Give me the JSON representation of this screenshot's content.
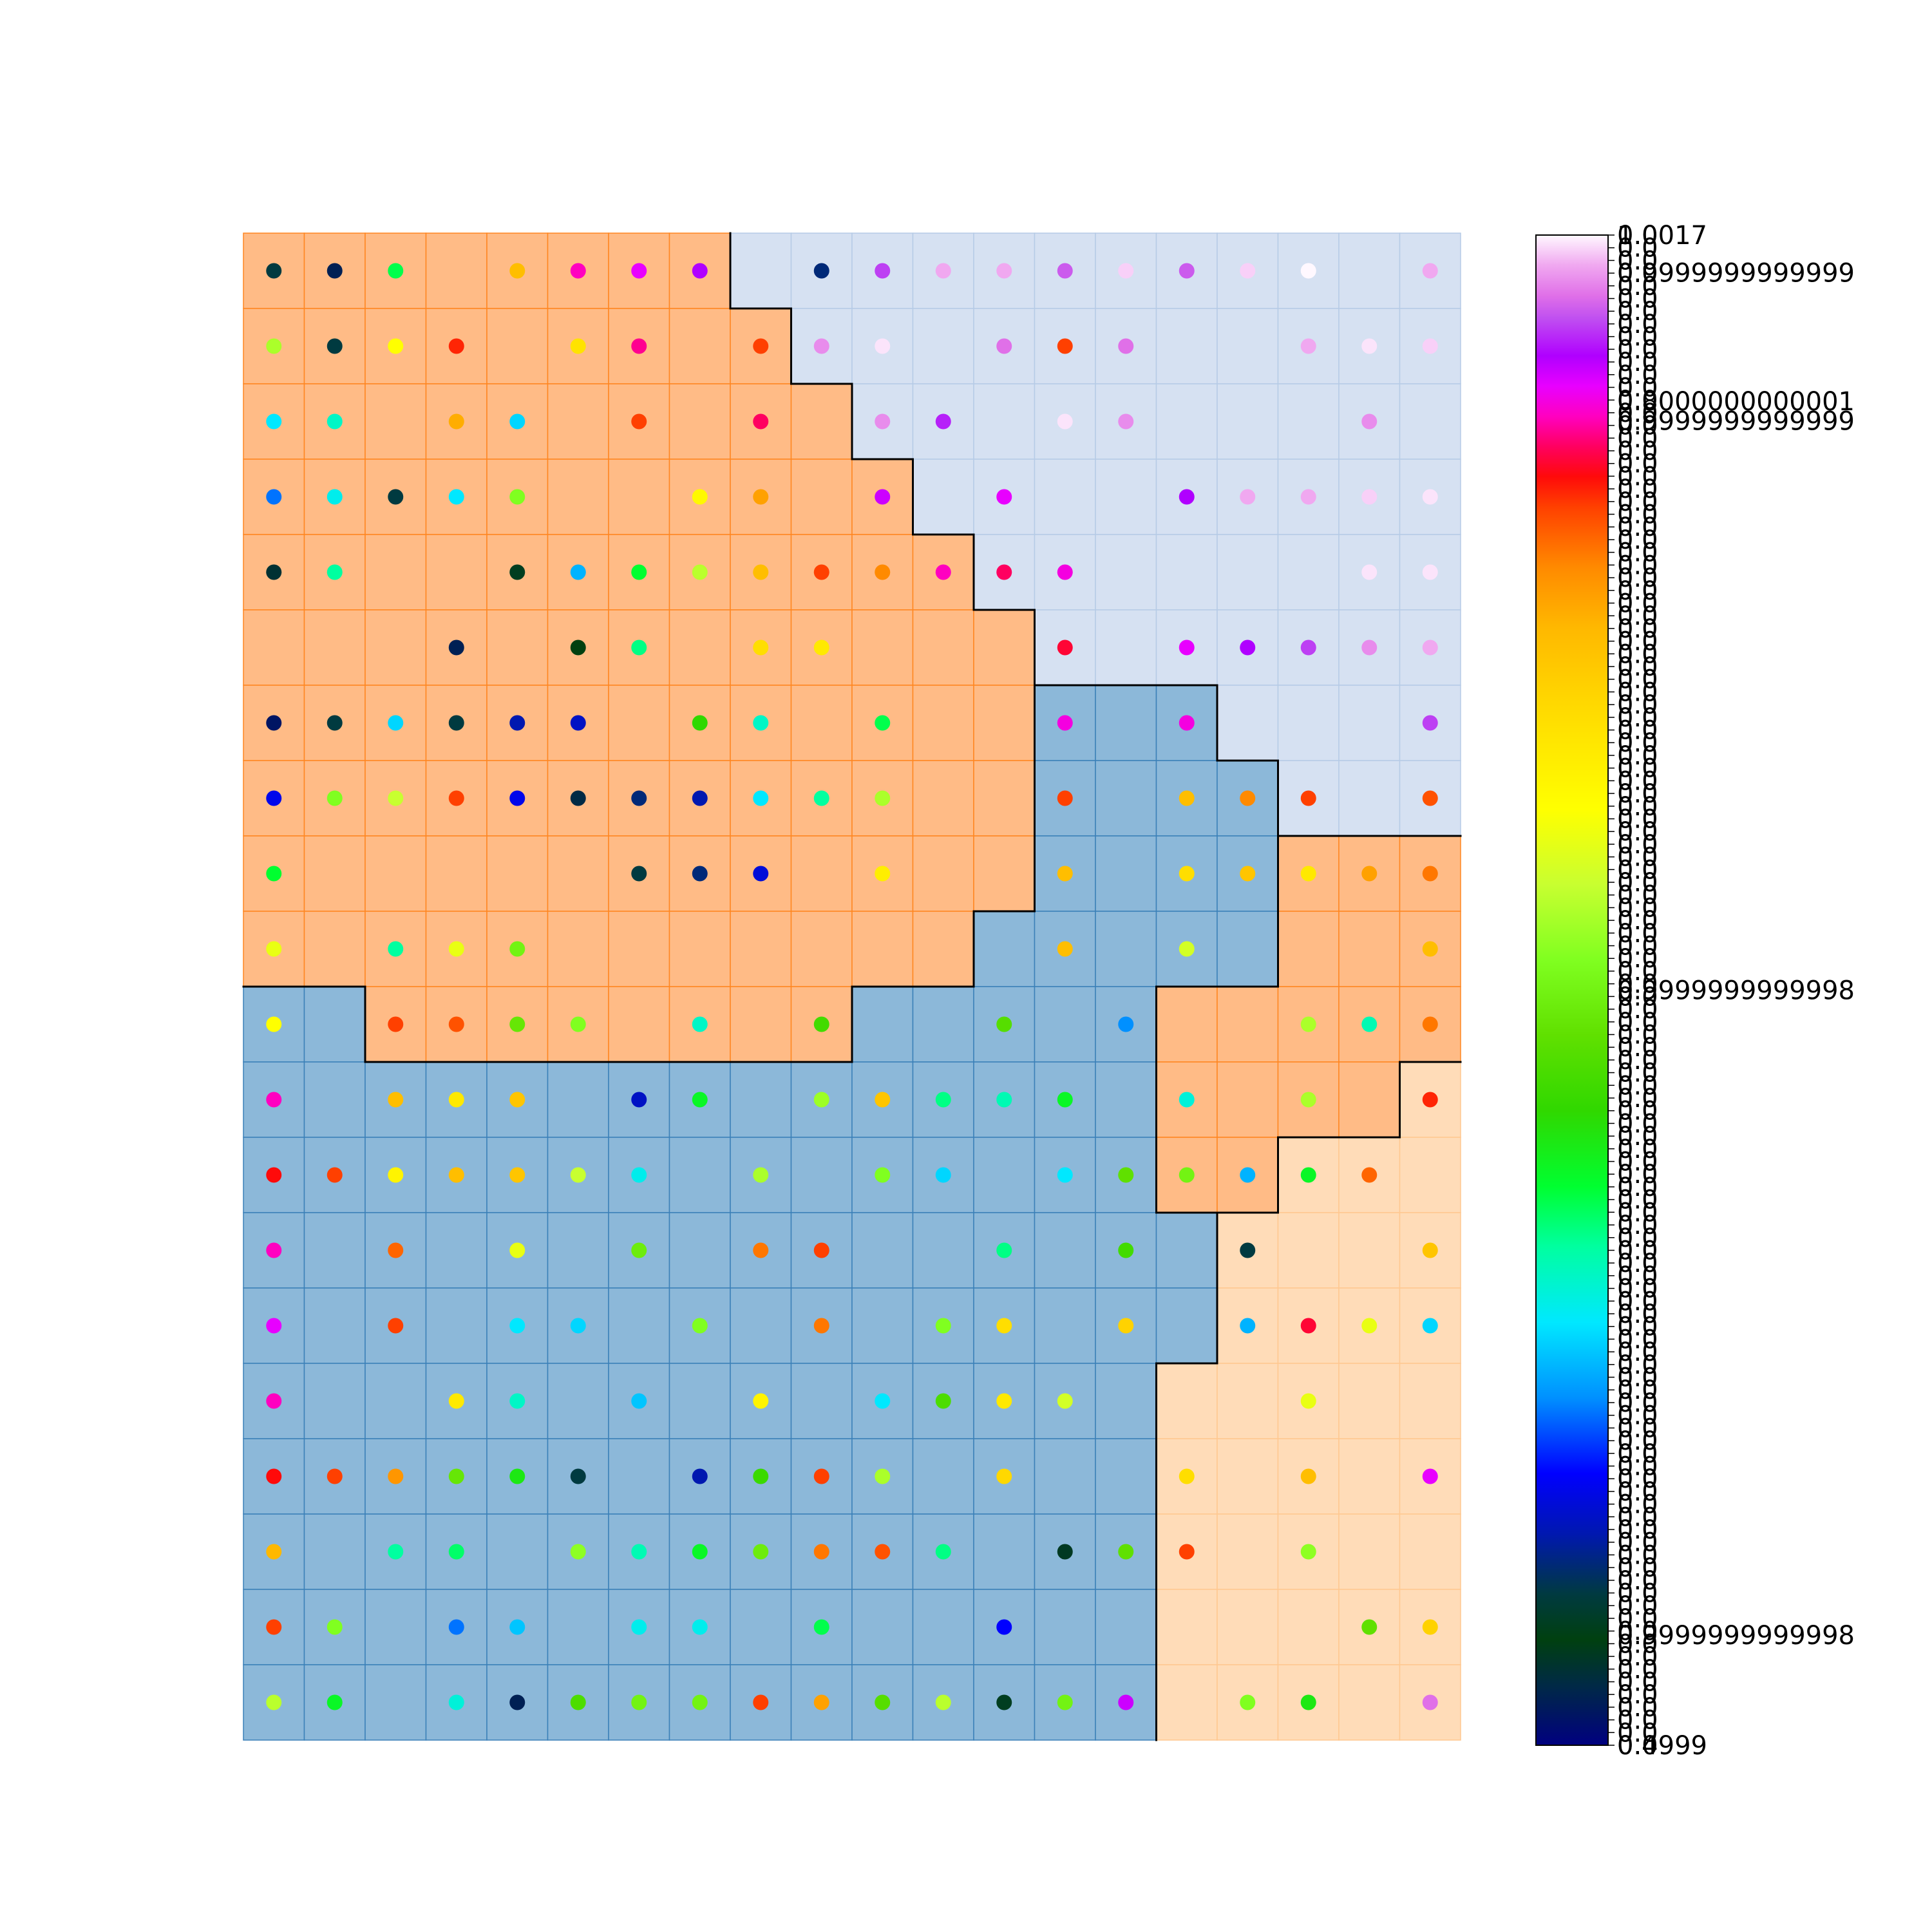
{
  "chart_data": {
    "type": "heatmap",
    "title": "",
    "xlabel": "",
    "ylabel": "",
    "grid": {
      "rows": 20,
      "cols": 20
    },
    "region_colors": {
      "A": "#FFBB86",
      "B": "#8CB8D9",
      "C": "#D6E1F2",
      "D": "#FFDCB8"
    },
    "region_border_colors": {
      "A": "#FF8620",
      "B": "#3B80B8",
      "C": "#B6CBE6",
      "D": "#FFC890"
    },
    "regions": [
      "AAAAAAAACCCCCCCCCCCC",
      "AAAAAAAAACCCCCCCCCCC",
      "AAAAAAAAAACCCCCCCCCC",
      "AAAAAAAAAAACCCCCCCCC",
      "AAAAAAAAAAAACCCCCCCC",
      "AAAAAAAAAAAAACCCCCCC",
      "AAAAAAAAAAAAABBBCCCC",
      "AAAAAAAAAAAAABBBBCCC",
      "AAAAAAAAAAAAABBBBAAA",
      "AAAAAAAAAAAABBBBBAAA",
      "BBAAAAAAAABBBBBAAAAA",
      "BBBBBBBBBBBBBBBAAAAD",
      "BBBBBBBBBBBBBBBAADDD",
      "BBBBBBBBBBBBBBBBDDDD",
      "BBBBBBBBBBBBBBBBDDDD",
      "BBBBBBBBBBBBBBBDDDDD",
      "BBBBBBBBBBBBBBBDDDDD",
      "BBBBBBBBBBBBBBBDDDDD",
      "BBBBBBBBBBBBBBBDDDDD",
      "BBBBBBBBBBBBBBBDDDDD"
    ],
    "point_values": [
      [
        0.1,
        0.03,
        0.36,
        null,
        0.73,
        0.88,
        0.9,
        0.92,
        null,
        0.12,
        0.94,
        0.98,
        0.98,
        0.95,
        0.99,
        0.95,
        0.99,
        1.0,
        null,
        0.98
      ],
      [
        0.55,
        0.1,
        0.62,
        0.83,
        null,
        0.67,
        0.87,
        null,
        0.82,
        0.97,
        0.995,
        null,
        0.96,
        0.82,
        0.96,
        null,
        null,
        0.98,
        0.995,
        0.99
      ],
      [
        0.28,
        0.31,
        null,
        0.75,
        0.27,
        null,
        0.82,
        null,
        0.86,
        null,
        0.97,
        0.93,
        null,
        0.995,
        0.97,
        null,
        null,
        null,
        0.97,
        null
      ],
      [
        0.22,
        0.29,
        0.1,
        0.28,
        0.52,
        null,
        null,
        0.63,
        0.76,
        null,
        0.91,
        null,
        0.9,
        null,
        null,
        0.92,
        0.98,
        0.98,
        0.99,
        0.995
      ],
      [
        0.05,
        0.33,
        null,
        null,
        0.08,
        0.25,
        0.37,
        0.56,
        0.73,
        0.82,
        0.78,
        0.88,
        0.86,
        0.89,
        null,
        null,
        null,
        null,
        0.995,
        0.995
      ],
      [
        null,
        null,
        null,
        0.03,
        null,
        0.07,
        0.34,
        null,
        0.68,
        0.66,
        null,
        null,
        null,
        0.85,
        null,
        0.9,
        0.92,
        0.94,
        0.97,
        0.98
      ],
      [
        0.02,
        0.1,
        0.27,
        0.1,
        0.14,
        0.15,
        null,
        0.42,
        0.31,
        null,
        0.36,
        null,
        null,
        0.89,
        null,
        0.89,
        null,
        null,
        null,
        0.94
      ],
      [
        0.17,
        0.52,
        0.57,
        0.82,
        0.17,
        0.04,
        0.12,
        0.14,
        0.28,
        0.33,
        0.55,
        null,
        null,
        0.82,
        null,
        0.73,
        0.78,
        0.82,
        null,
        0.81
      ],
      [
        0.37,
        null,
        null,
        null,
        null,
        null,
        0.1,
        0.12,
        0.16,
        null,
        0.65,
        null,
        null,
        0.73,
        null,
        0.68,
        0.72,
        0.66,
        0.76,
        0.79
      ],
      [
        0.6,
        null,
        0.33,
        0.6,
        0.5,
        null,
        null,
        null,
        null,
        null,
        null,
        null,
        null,
        0.73,
        null,
        0.58,
        null,
        null,
        null,
        0.73
      ],
      [
        0.62,
        null,
        0.82,
        0.81,
        0.48,
        0.52,
        null,
        0.31,
        null,
        0.44,
        null,
        null,
        0.46,
        null,
        0.23,
        null,
        null,
        0.55,
        0.32,
        0.79
      ],
      [
        0.88,
        null,
        0.73,
        0.66,
        0.72,
        null,
        0.15,
        0.38,
        null,
        0.54,
        0.72,
        0.34,
        0.32,
        0.38,
        null,
        0.3,
        null,
        0.55,
        null,
        0.83
      ],
      [
        0.84,
        0.82,
        0.64,
        0.73,
        0.72,
        0.57,
        0.29,
        null,
        0.55,
        null,
        0.52,
        0.27,
        null,
        0.28,
        0.47,
        0.5,
        0.25,
        0.38,
        0.8,
        null
      ],
      [
        0.88,
        null,
        0.8,
        null,
        0.6,
        null,
        0.49,
        null,
        0.79,
        0.82,
        null,
        null,
        0.34,
        null,
        0.44,
        null,
        0.1,
        null,
        null,
        0.72
      ],
      [
        0.9,
        null,
        0.82,
        null,
        0.28,
        0.27,
        null,
        0.52,
        null,
        0.79,
        null,
        0.52,
        0.68,
        null,
        0.7,
        null,
        0.25,
        0.85,
        0.6,
        0.27
      ],
      [
        0.88,
        null,
        null,
        0.66,
        0.31,
        null,
        0.26,
        null,
        0.64,
        null,
        0.28,
        0.45,
        0.66,
        0.58,
        null,
        null,
        null,
        0.6,
        null,
        null
      ],
      [
        0.84,
        0.82,
        0.77,
        0.48,
        0.4,
        0.1,
        null,
        0.14,
        0.43,
        0.82,
        0.55,
        null,
        0.69,
        null,
        null,
        0.68,
        null,
        0.73,
        null,
        0.9
      ],
      [
        0.74,
        null,
        0.33,
        0.35,
        null,
        0.53,
        0.32,
        0.38,
        0.49,
        0.79,
        0.81,
        0.34,
        null,
        0.06,
        0.47,
        0.82,
        null,
        0.53,
        null,
        null
      ],
      [
        0.82,
        0.52,
        null,
        0.22,
        0.26,
        null,
        0.29,
        0.29,
        null,
        0.36,
        null,
        null,
        0.18,
        null,
        null,
        null,
        null,
        null,
        0.47,
        0.7
      ],
      [
        0.56,
        0.38,
        null,
        0.3,
        0.03,
        0.45,
        0.5,
        0.5,
        0.82,
        0.76,
        0.46,
        0.56,
        0.08,
        0.5,
        0.91,
        null,
        0.52,
        0.4,
        null,
        0.96
      ]
    ],
    "colorbar": {
      "colormap": "gist_ncar",
      "range": [
        0.4999,
        1.0
      ],
      "visible_tick_labels": [
        {
          "text": "1.0017",
          "value": 1.0
        },
        {
          "text": "0.9999999999999",
          "value": 0.975
        },
        {
          "text": "0.8000000000001",
          "value": 0.89
        },
        {
          "text": "0.9999999999999",
          "value": 0.877
        },
        {
          "text": "0.9999999999998",
          "value": 0.5
        },
        {
          "text": "0.9999999999998",
          "value": 0.073
        },
        {
          "text": "0.4999",
          "value": 0.0
        }
      ],
      "overlap_tick_count": 120
    }
  }
}
